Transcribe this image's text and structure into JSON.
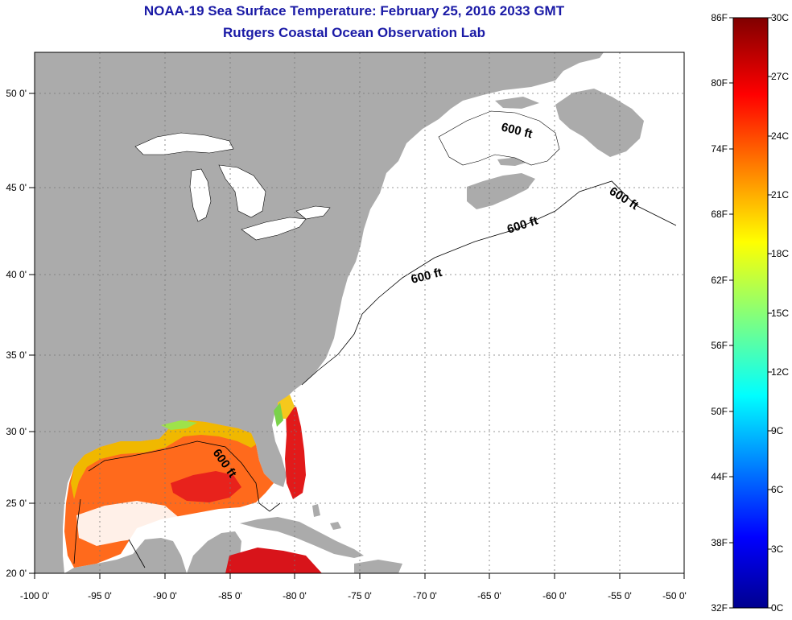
{
  "header": {
    "title": "NOAA-19 Sea Surface Temperature:  February 25, 2016 2033 GMT",
    "subtitle": "Rutgers Coastal Ocean Observation Lab"
  },
  "map": {
    "lon_ticks": [
      "-100 0'",
      "-95 0'",
      "-90 0'",
      "-85 0'",
      "-80 0'",
      "-75 0'",
      "-70 0'",
      "-65 0'",
      "-60 0'",
      "-55 0'",
      "-50 0'"
    ],
    "lat_ticks": [
      "50 0'",
      "45 0'",
      "40 0'",
      "35 0'",
      "30 0'",
      "25 0'",
      "20 0'"
    ],
    "isobath_labels": [
      "600 ft",
      "600 ft",
      "600 ft",
      "600 ft",
      "600 ft"
    ],
    "colors": {
      "land": "#ababab",
      "ocean_nodata": "#ffffff",
      "grid": "#777777",
      "title": "#1a1aa6"
    }
  },
  "colorbar": {
    "fahrenheit": [
      "86F",
      "80F",
      "74F",
      "68F",
      "62F",
      "56F",
      "50F",
      "44F",
      "38F",
      "32F"
    ],
    "celsius": [
      "30C",
      "27C",
      "24C",
      "21C",
      "18C",
      "15C",
      "12C",
      "9C",
      "6C",
      "3C",
      "0C"
    ]
  }
}
